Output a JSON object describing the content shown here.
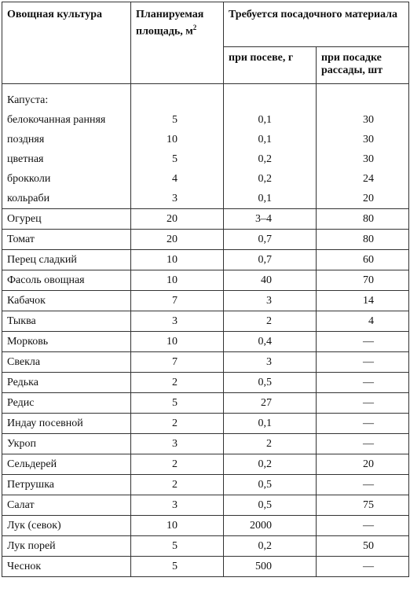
{
  "headers": {
    "crop": "Овощная культура",
    "area": "Планируемая площадь, м",
    "area_sup": "2",
    "required": "Требуется посадочного материала",
    "sowing": "при посеве, г",
    "seedling": "при посадке рассады, шт"
  },
  "cabbage": {
    "label": "Капуста:",
    "rows": [
      {
        "name": "белокочанная ранняя",
        "area": "5",
        "sowing": "0,1",
        "seedling": "30"
      },
      {
        "name": "поздняя",
        "area": "10",
        "sowing": "0,1",
        "seedling": "30"
      },
      {
        "name": "цветная",
        "area": "5",
        "sowing": "0,2",
        "seedling": "30"
      },
      {
        "name": "брокколи",
        "area": "4",
        "sowing": "0,2",
        "seedling": "24"
      },
      {
        "name": "кольраби",
        "area": "3",
        "sowing": "0,1",
        "seedling": "20"
      }
    ]
  },
  "rows": [
    {
      "name": "Огурец",
      "area": "20",
      "sowing": "3–4",
      "seedling": "80"
    },
    {
      "name": "Томат",
      "area": "20",
      "sowing": "0,7",
      "seedling": "80"
    },
    {
      "name": "Перец сладкий",
      "area": "10",
      "sowing": "0,7",
      "seedling": "60"
    },
    {
      "name": "Фасоль овощная",
      "area": "10",
      "sowing": "40",
      "seedling": "70"
    },
    {
      "name": "Кабачок",
      "area": "7",
      "sowing": "3",
      "seedling": "14"
    },
    {
      "name": "Тыква",
      "area": "3",
      "sowing": "2",
      "seedling": "4"
    },
    {
      "name": "Морковь",
      "area": "10",
      "sowing": "0,4",
      "seedling": "—"
    },
    {
      "name": "Свекла",
      "area": "7",
      "sowing": "3",
      "seedling": "—"
    },
    {
      "name": "Редька",
      "area": "2",
      "sowing": "0,5",
      "seedling": "—"
    },
    {
      "name": "Редис",
      "area": "5",
      "sowing": "27",
      "seedling": "—"
    },
    {
      "name": "Индау посевной",
      "area": "2",
      "sowing": "0,1",
      "seedling": "—"
    },
    {
      "name": "Укроп",
      "area": "3",
      "sowing": "2",
      "seedling": "—"
    },
    {
      "name": "Сельдерей",
      "area": "2",
      "sowing": "0,2",
      "seedling": "20"
    },
    {
      "name": "Петрушка",
      "area": "2",
      "sowing": "0,5",
      "seedling": "—"
    },
    {
      "name": "Салат",
      "area": "3",
      "sowing": "0,5",
      "seedling": "75"
    },
    {
      "name": "Лук (севок)",
      "area": "10",
      "sowing": "2000",
      "seedling": "—"
    },
    {
      "name": "Лук порей",
      "area": "5",
      "sowing": "0,2",
      "seedling": "50"
    },
    {
      "name": "Чеснок",
      "area": "5",
      "sowing": "500",
      "seedling": "—"
    }
  ]
}
